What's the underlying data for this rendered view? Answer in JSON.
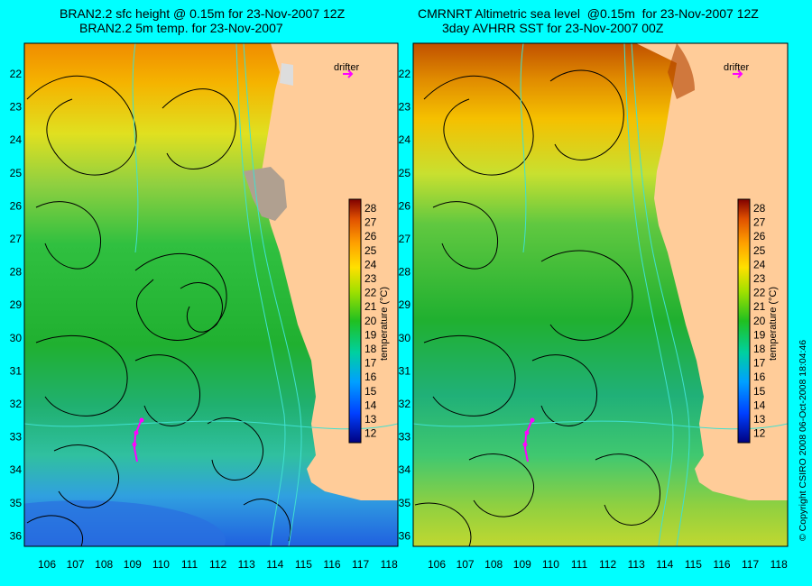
{
  "panels": [
    {
      "id": "left",
      "title_line1": "BRAN2.2 sfc height @ 0.15m for 23-Nov-2007 12Z",
      "title_line2": "BRAN2.2 5m temp. for 23-Nov-2007",
      "drifter_label": "drifter",
      "colorbar_label": "temperature (°C)"
    },
    {
      "id": "right",
      "title_line1": "CMRNRT Altimetric sea level  @0.15m  for 23-Nov-2007 12Z",
      "title_line2": "3day AVHRR SST for 23-Nov-2007 00Z",
      "drifter_label": "drifter",
      "colorbar_label": "temperature (°C)"
    }
  ],
  "axes": {
    "lon_ticks": [
      "106",
      "107",
      "108",
      "109",
      "110",
      "111",
      "112",
      "113",
      "114",
      "115",
      "116",
      "117",
      "118"
    ],
    "lat_ticks": [
      "22",
      "23",
      "24",
      "25",
      "26",
      "27",
      "28",
      "29",
      "30",
      "31",
      "32",
      "33",
      "34",
      "35",
      "36"
    ],
    "colorbar_ticks": [
      "28",
      "27",
      "26",
      "25",
      "24",
      "23",
      "22",
      "21",
      "20",
      "19",
      "18",
      "17",
      "16",
      "15",
      "14",
      "13",
      "12"
    ]
  },
  "copyright": "© Copyright CSIRO 2008    06-Oct-2008 18:04:46",
  "colors": {
    "background": "#00ffff",
    "land": "#ffcc99",
    "contour": "#000000",
    "isobath": "#40e0d0",
    "drifter": "#ff00ff"
  }
}
